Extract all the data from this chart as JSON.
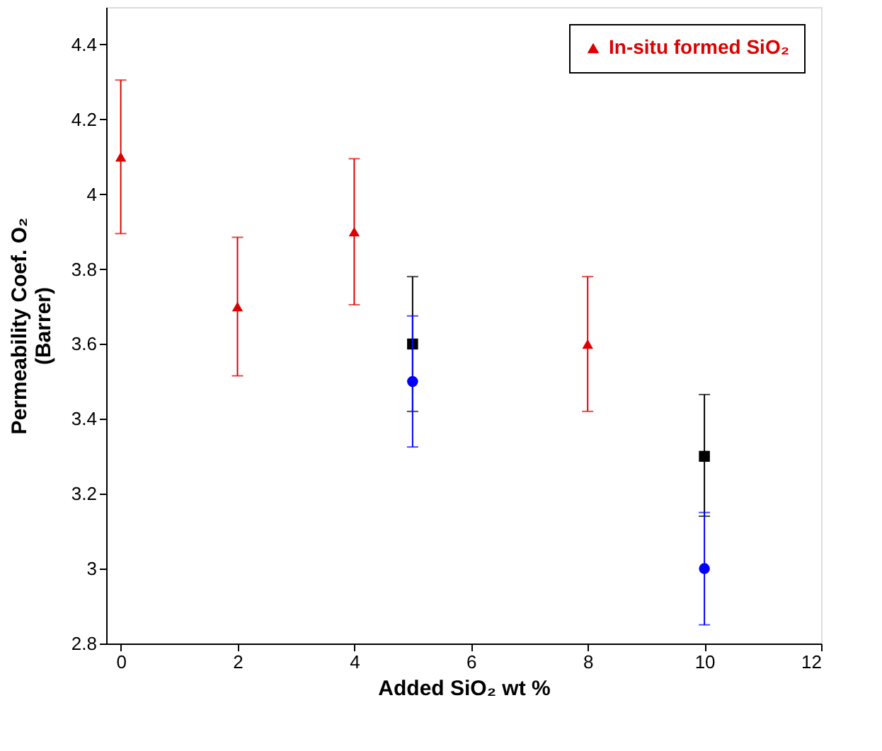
{
  "chart_data": {
    "type": "scatter",
    "xlabel": "Added SiO₂ wt %",
    "ylabel": "Permeability Coef. O₂\n(Barrer)",
    "xlim": [
      -0.25,
      12
    ],
    "xticks": [
      0,
      2,
      4,
      6,
      8,
      10,
      12
    ],
    "ylim": [
      2.8,
      4.5
    ],
    "yticks": [
      2.8,
      3,
      3.2,
      3.4,
      3.6,
      3.8,
      4,
      4.2,
      4.4
    ],
    "grid": false,
    "legend": "top right",
    "series": [
      {
        "color": "#000000",
        "marker": "square",
        "x": [
          5,
          10
        ],
        "values": [
          3.6,
          3.3
        ],
        "errors": [
          [
            3.42,
            3.78
          ],
          [
            3.14,
            3.465
          ]
        ]
      },
      {
        "color": "#0000ff",
        "marker": "circle",
        "x": [
          5,
          10
        ],
        "values": [
          3.5,
          3.0
        ],
        "errors": [
          [
            3.325,
            3.675
          ],
          [
            2.85,
            3.15
          ]
        ]
      },
      {
        "name": "In-situ formed SiO₂",
        "color": "#dd0000",
        "marker": "triangle",
        "x": [
          0,
          2,
          4,
          8
        ],
        "values": [
          4.1,
          3.7,
          3.9,
          3.6
        ],
        "errors": [
          [
            3.895,
            4.305
          ],
          [
            3.515,
            3.885
          ],
          [
            3.705,
            4.095
          ],
          [
            3.42,
            3.78
          ]
        ]
      }
    ]
  }
}
